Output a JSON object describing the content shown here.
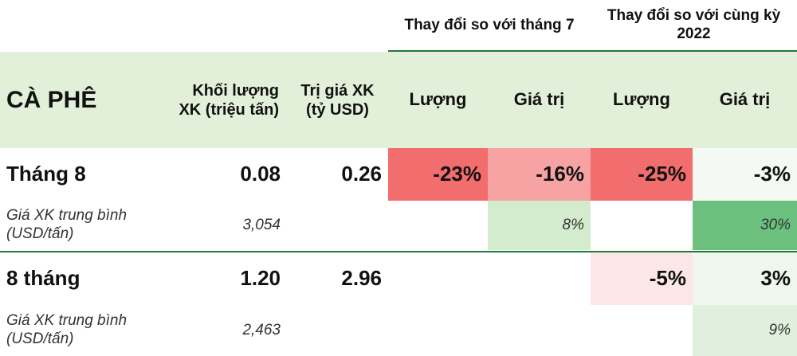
{
  "colors": {
    "header_band": "#e2f0d9",
    "rule": "#1e7b3a",
    "neg_strong": "#f26d6d",
    "neg_mid": "#f7a3a3",
    "neg_light": "#fce6e6",
    "pos_strong": "#6cc07e",
    "pos_light": "#d3eccd",
    "pos_pale": "#eef6ee",
    "pos_faint": "#f4f9f4"
  },
  "top_header": {
    "group1": "Thay đổi so với tháng 7",
    "group2": "Thay đổi so với cùng kỳ 2022"
  },
  "header": {
    "product": "CÀ PHÊ",
    "volume": "Khối lượng XK (triệu tấn)",
    "value": "Trị giá XK (tỷ USD)",
    "m_volume": "Lượng",
    "m_value": "Giá trị",
    "y_volume": "Lượng",
    "y_value": "Giá trị"
  },
  "rows": [
    {
      "label": "Tháng 8",
      "volume": "0.08",
      "value": "0.26",
      "m_volume": "-23%",
      "m_value": "-16%",
      "y_volume": "-25%",
      "y_value": "-3%"
    },
    {
      "label": "Giá XK trung bình (USD/tấn)",
      "volume": "3,054",
      "m_value": "8%",
      "y_value": "30%"
    },
    {
      "label": "8 tháng",
      "volume": "1.20",
      "value": "2.96",
      "y_volume": "-5%",
      "y_value": "3%"
    },
    {
      "label": "Giá XK trung bình (USD/tấn)",
      "volume": "2,463",
      "y_value": "9%"
    }
  ]
}
